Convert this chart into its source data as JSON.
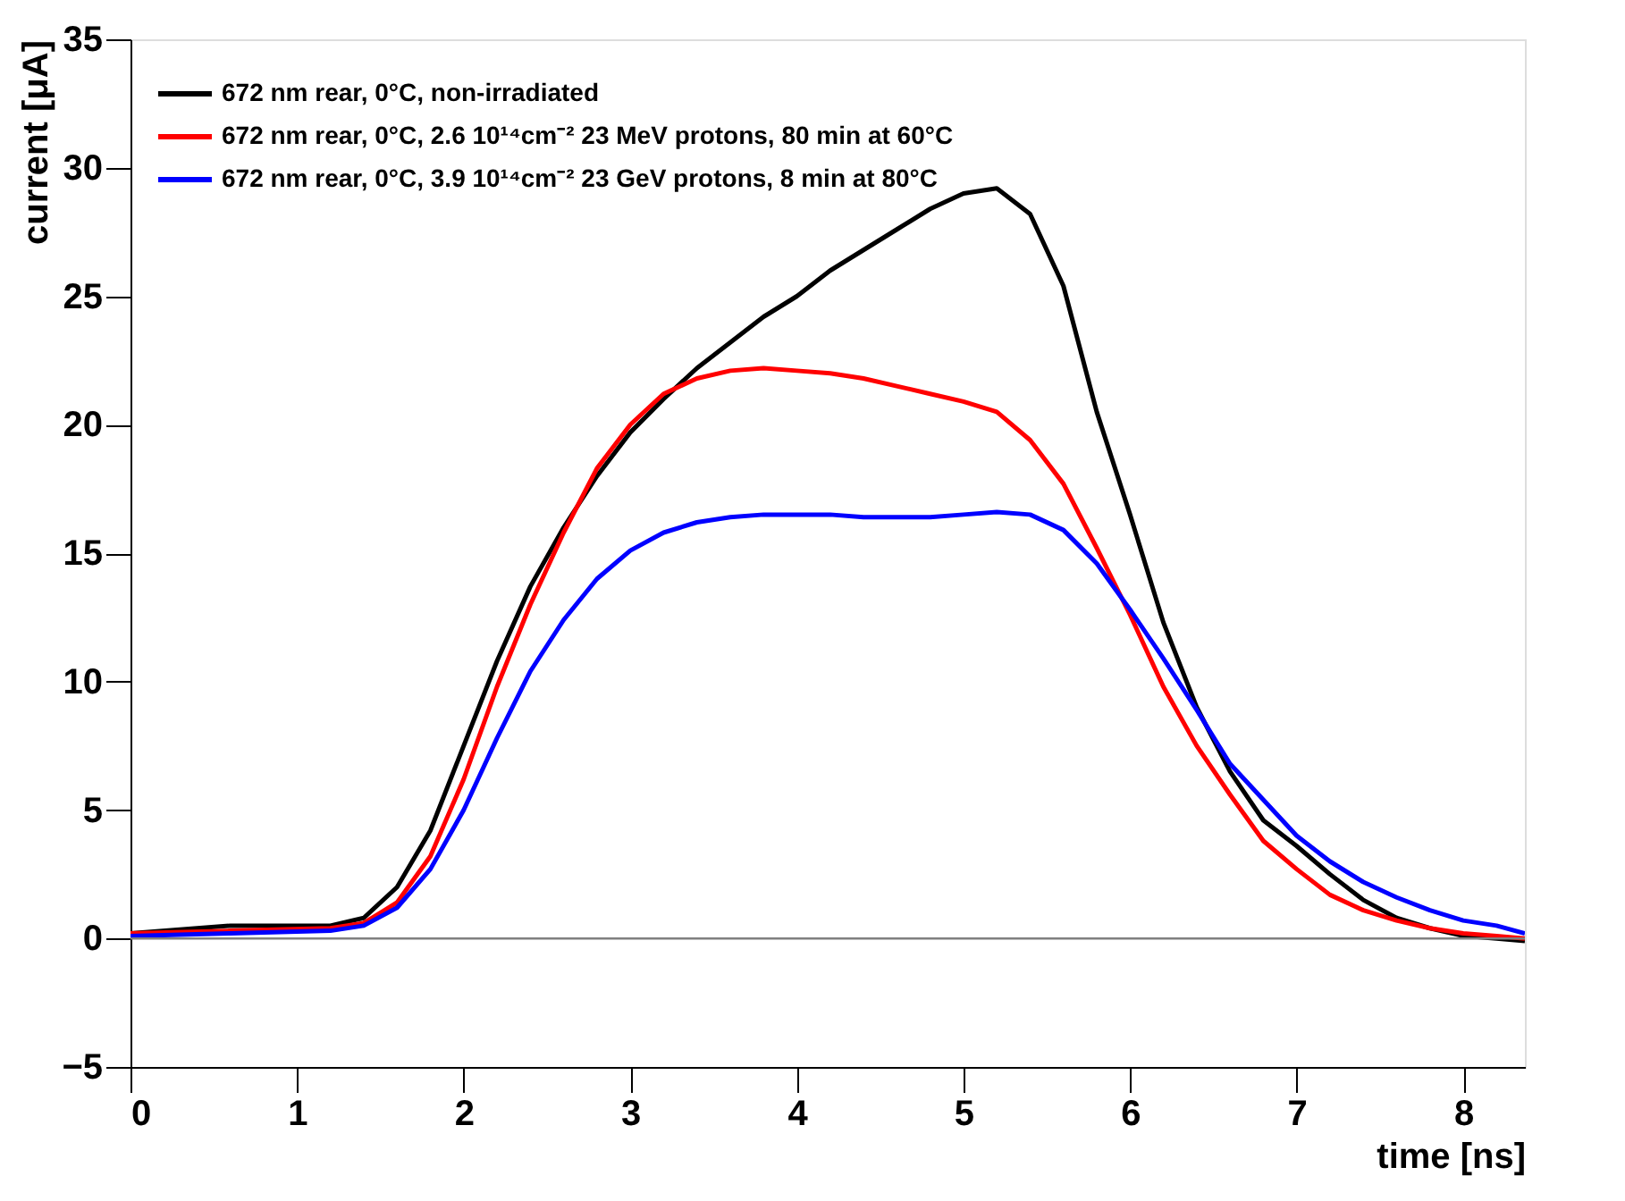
{
  "chart_data": {
    "type": "line",
    "xlabel": "time [ns]",
    "ylabel": "current [μA]",
    "x": [
      0,
      0.6,
      1.2,
      1.4,
      1.6,
      1.8,
      2.0,
      2.2,
      2.4,
      2.6,
      2.8,
      3.0,
      3.2,
      3.4,
      3.6,
      3.8,
      4.0,
      4.2,
      4.4,
      4.6,
      4.8,
      5.0,
      5.2,
      5.4,
      5.6,
      5.8,
      6.0,
      6.2,
      6.4,
      6.6,
      6.8,
      7.0,
      7.2,
      7.4,
      7.6,
      7.8,
      8.0,
      8.2,
      8.37
    ],
    "series": [
      {
        "name": "672 nm rear, 0°C, non-irradiated",
        "color": "#000000",
        "values": [
          0.2,
          0.5,
          0.5,
          0.8,
          2.0,
          4.2,
          7.5,
          10.8,
          13.7,
          16.0,
          18.0,
          19.7,
          21.0,
          22.2,
          23.2,
          24.2,
          25.0,
          26.0,
          26.8,
          27.6,
          28.4,
          29.0,
          29.2,
          28.2,
          25.4,
          20.5,
          16.5,
          12.3,
          9.0,
          6.5,
          4.6,
          3.6,
          2.5,
          1.5,
          0.8,
          0.4,
          0.1,
          0.0,
          -0.1
        ]
      },
      {
        "name": "672 nm rear, 0°C, 2.6 10¹⁴cm⁻² 23 MeV protons, 80 min at 60°C",
        "color": "#ff0000",
        "values": [
          0.2,
          0.3,
          0.4,
          0.6,
          1.4,
          3.2,
          6.2,
          9.8,
          13.0,
          15.8,
          18.3,
          20.0,
          21.2,
          21.8,
          22.1,
          22.2,
          22.1,
          22.0,
          21.8,
          21.5,
          21.2,
          20.9,
          20.5,
          19.4,
          17.7,
          15.2,
          12.6,
          9.8,
          7.5,
          5.6,
          3.8,
          2.7,
          1.7,
          1.1,
          0.7,
          0.4,
          0.2,
          0.1,
          0.0
        ]
      },
      {
        "name": "672 nm rear, 0°C, 3.9 10¹⁴cm⁻² 23 GeV protons, 8 min at 80°C",
        "color": "#0000ff",
        "values": [
          0.1,
          0.2,
          0.3,
          0.5,
          1.2,
          2.7,
          5.0,
          7.8,
          10.4,
          12.4,
          14.0,
          15.1,
          15.8,
          16.2,
          16.4,
          16.5,
          16.5,
          16.5,
          16.4,
          16.4,
          16.4,
          16.5,
          16.6,
          16.5,
          15.9,
          14.6,
          12.8,
          10.9,
          8.9,
          6.8,
          5.4,
          4.0,
          3.0,
          2.2,
          1.6,
          1.1,
          0.7,
          0.5,
          0.2
        ]
      }
    ],
    "xlim": [
      0,
      8.37
    ],
    "xticks": [
      0,
      1,
      2,
      3,
      4,
      5,
      6,
      7,
      8
    ],
    "ylim": [
      -5,
      35
    ],
    "yticks": [
      -5,
      0,
      5,
      10,
      15,
      20,
      25,
      30,
      35
    ],
    "ref_lines": [
      {
        "axis": "y",
        "value": 0,
        "color": "#808080"
      }
    ],
    "grid": false,
    "legend": "top left",
    "marker": "none",
    "line_style": "solid"
  }
}
